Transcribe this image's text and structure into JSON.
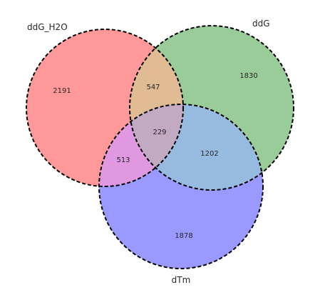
{
  "sets": [
    {
      "key": "A",
      "name": "ddG_H2O",
      "color": "#ff0000"
    },
    {
      "key": "B",
      "name": "ddG",
      "color": "#008000"
    },
    {
      "key": "C",
      "name": "dTm",
      "color": "#0000ff"
    }
  ],
  "regions": {
    "A": "2191",
    "B": "1830",
    "C": "1878",
    "AB": "547",
    "AC": "513",
    "BC": "1202",
    "ABC": "229"
  },
  "colors": {
    "outline": "#000000",
    "text": "#262626",
    "background": "#ffffff"
  }
}
